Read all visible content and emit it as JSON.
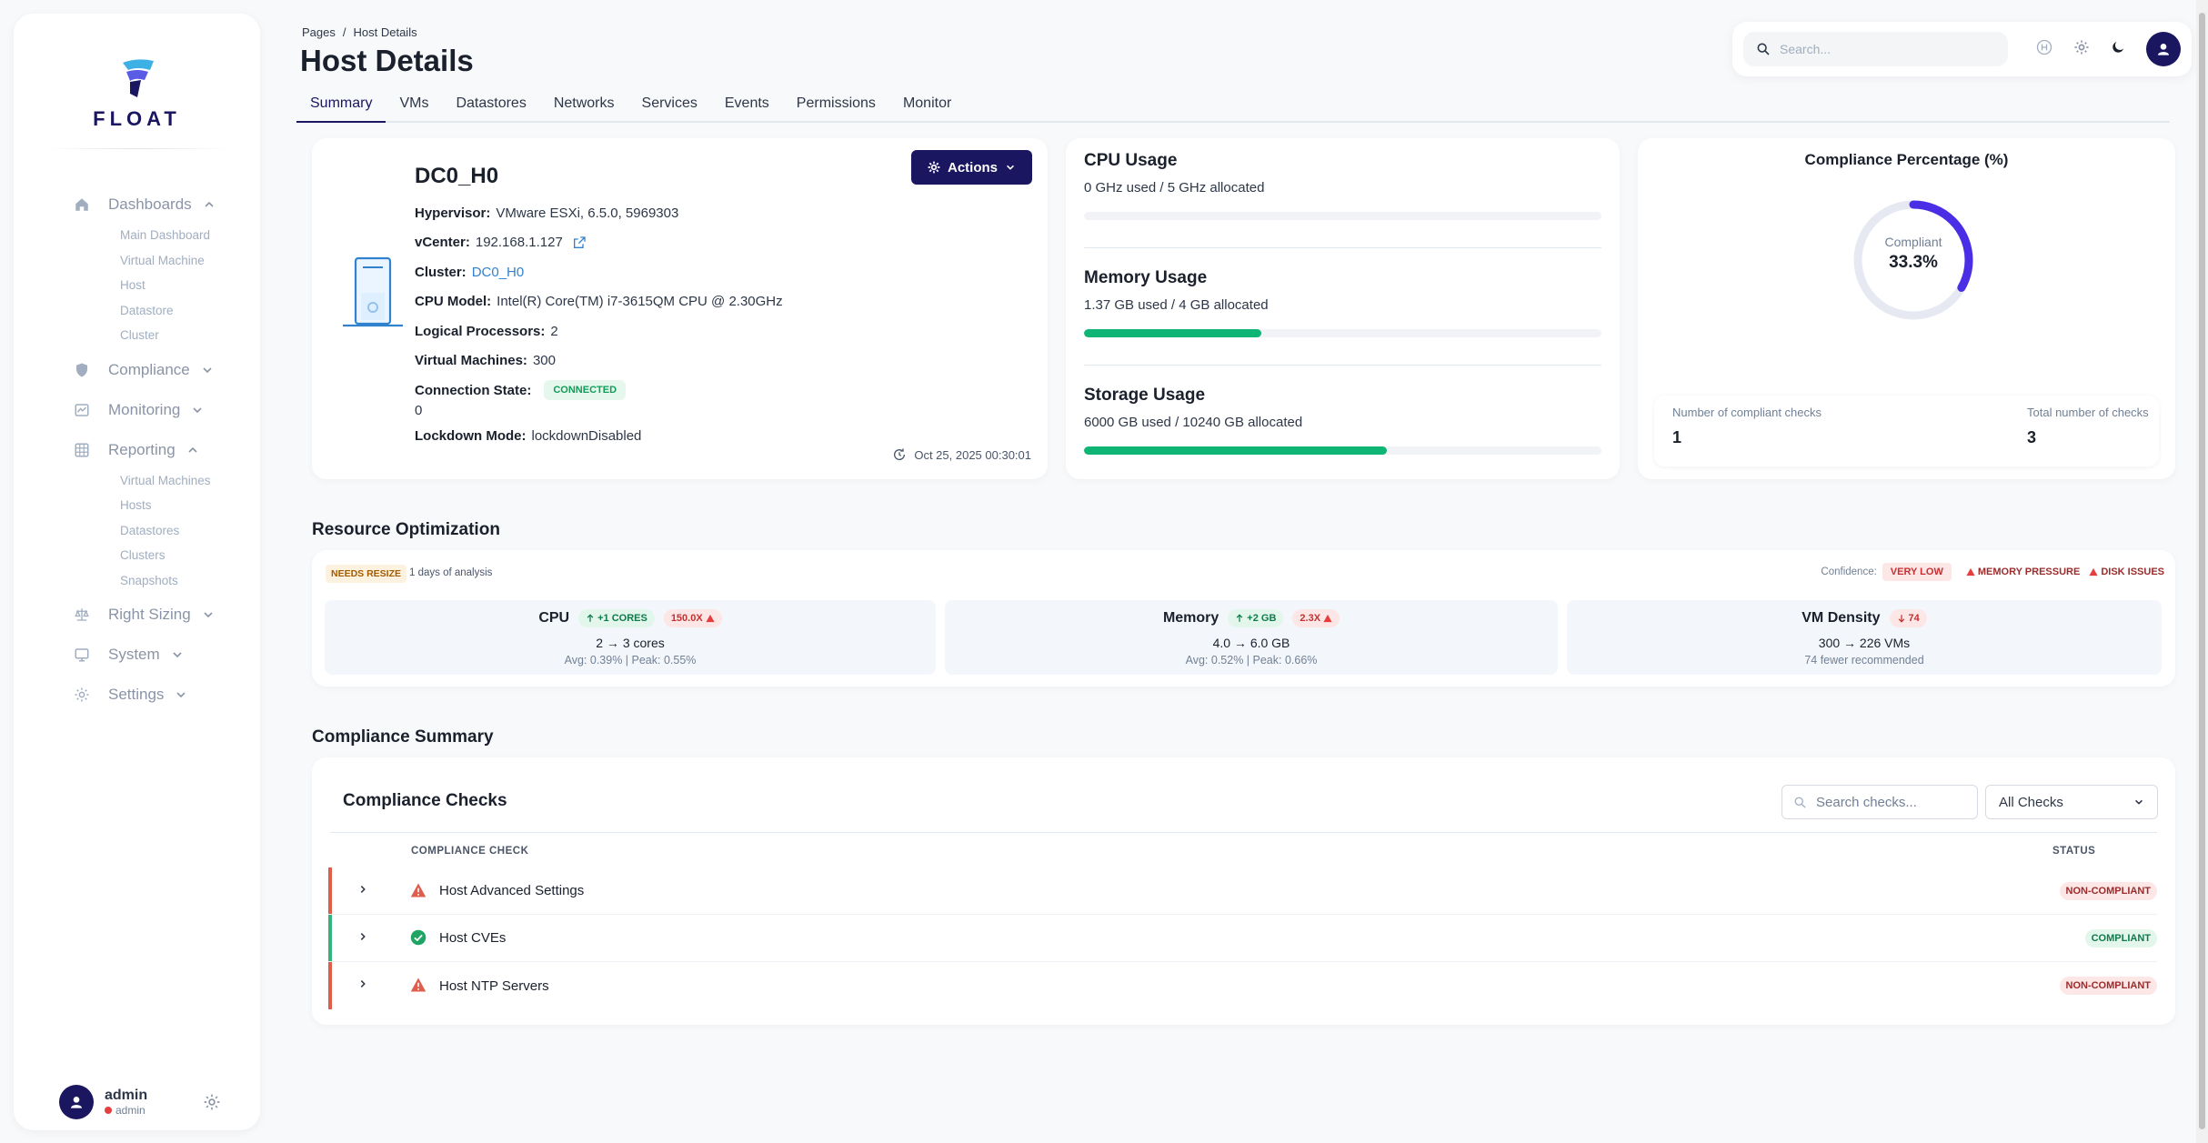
{
  "sidebar": {
    "logo_text": "FLOAT",
    "groups": {
      "dashboards": {
        "label": "Dashboards",
        "items": [
          "Main Dashboard",
          "Virtual Machine",
          "Host",
          "Datastore",
          "Cluster"
        ]
      },
      "compliance": {
        "label": "Compliance"
      },
      "monitoring": {
        "label": "Monitoring"
      },
      "reporting": {
        "label": "Reporting",
        "items": [
          "Virtual Machines",
          "Hosts",
          "Datastores",
          "Clusters",
          "Snapshots"
        ]
      },
      "right_sizing": {
        "label": "Right Sizing"
      },
      "system": {
        "label": "System"
      },
      "settings": {
        "label": "Settings"
      }
    },
    "user": {
      "name": "admin",
      "role": "admin"
    }
  },
  "header": {
    "breadcrumb": {
      "root": "Pages",
      "sep": "/",
      "current": "Host Details"
    },
    "title": "Host Details",
    "search_placeholder": "Search...",
    "tabs": [
      "Summary",
      "VMs",
      "Datastores",
      "Networks",
      "Services",
      "Events",
      "Permissions",
      "Monitor"
    ],
    "active_tab": "Summary"
  },
  "host": {
    "name": "DC0_H0",
    "actions_label": "Actions",
    "hypervisor_label": "Hypervisor:",
    "hypervisor": "VMware ESXi, 6.5.0, 5969303",
    "vcenter_label": "vCenter:",
    "vcenter": "192.168.1.127",
    "cluster_label": "Cluster:",
    "cluster": "DC0_H0",
    "cpu_model_label": "CPU Model:",
    "cpu_model": "Intel(R) Core(TM) i7-3615QM CPU @ 2.30GHz",
    "logical_label": "Logical Processors:",
    "logical": "2",
    "vms_label": "Virtual Machines:",
    "vms": "300",
    "conn_label": "Connection State:",
    "conn_state": "CONNECTED",
    "conn_extra": "0",
    "lockdown_label": "Lockdown Mode:",
    "lockdown": "lockdownDisabled",
    "timestamp": "Oct 25, 2025 00:30:01"
  },
  "usage": {
    "cpu": {
      "title": "CPU Usage",
      "text": "0 GHz used / 5 GHz allocated",
      "fraction": 0
    },
    "memory": {
      "title": "Memory Usage",
      "text": "1.37 GB used / 4 GB allocated",
      "fraction": 0.3425
    },
    "storage": {
      "title": "Storage Usage",
      "text": "6000 GB used / 10240 GB allocated",
      "fraction": 0.586
    }
  },
  "compliance_card": {
    "title": "Compliance Percentage (%)",
    "donut_label": "Compliant",
    "percent_text": "33.3%",
    "percent": 33.3,
    "compliant_label": "Number of compliant checks",
    "compliant": "1",
    "total_label": "Total number of checks",
    "total": "3",
    "colors": {
      "track": "#e6e9f2",
      "fill": "#4a2ee6"
    }
  },
  "optimization": {
    "title": "Resource Optimization",
    "badge": "NEEDS RESIZE",
    "analysis": "1 days of analysis",
    "confidence_label": "Confidence:",
    "confidence": "VERY LOW",
    "warnings": [
      "MEMORY PRESSURE",
      "DISK ISSUES"
    ],
    "cpu": {
      "name": "CPU",
      "chip": "+1 CORES",
      "ratio": "150.0X",
      "value": "2 → 3 cores",
      "sub": "Avg: 0.39% | Peak: 0.55%"
    },
    "memory": {
      "name": "Memory",
      "chip": "+2 GB",
      "ratio": "2.3X",
      "value": "4.0 → 6.0 GB",
      "sub": "Avg: 0.52% | Peak: 0.66%"
    },
    "density": {
      "name": "VM Density",
      "chip": "74",
      "value": "300 → 226 VMs",
      "sub": "74 fewer recommended"
    }
  },
  "compliance_summary": {
    "title": "Compliance Summary",
    "card_title": "Compliance Checks",
    "search_placeholder": "Search checks...",
    "filter": "All Checks",
    "col_check": "COMPLIANCE CHECK",
    "col_status": "STATUS",
    "rows": [
      {
        "name": "Host Advanced Settings",
        "status": "NON-COMPLIANT"
      },
      {
        "name": "Host CVEs",
        "status": "COMPLIANT"
      },
      {
        "name": "Host NTP Servers",
        "status": "NON-COMPLIANT"
      }
    ]
  }
}
